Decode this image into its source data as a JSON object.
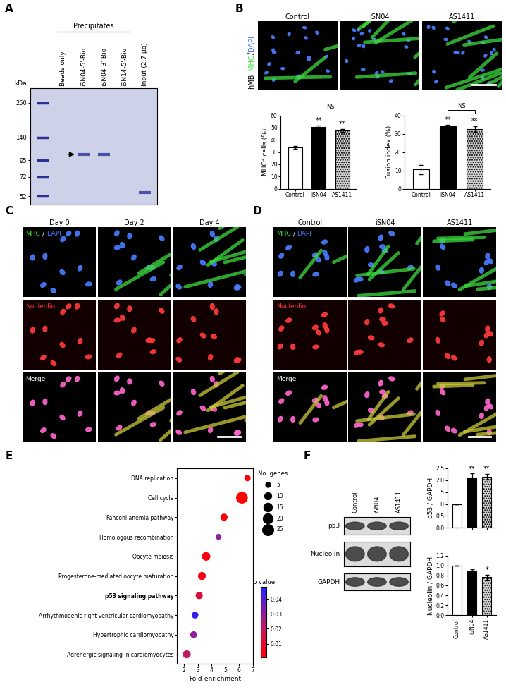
{
  "panel_labels": [
    "A",
    "B",
    "C",
    "D",
    "E",
    "F"
  ],
  "gel": {
    "unit": "kDa",
    "ylim": [
      45,
      320
    ],
    "yticks": [
      250,
      140,
      95,
      72,
      52
    ],
    "lanes": [
      null,
      "Beads only",
      "iSN04-5'-Bio",
      "iSN04-3'-Bio",
      "iSN14-5'-Bio",
      "Input (2.7 µg)"
    ],
    "group": {
      "label": "Precipitates",
      "lanes": [
        "Beads only",
        "iSN04-5'-Bio",
        "iSN04-3'-Bio",
        "iSN14-5'-Bio"
      ]
    },
    "bands": [
      {
        "lane": "iSN04-5'-Bio",
        "kda": 105
      },
      {
        "lane": "iSN04-3'-Bio",
        "kda": 105
      },
      {
        "lane": "Input (2.7 µg)",
        "kda": 55
      }
    ],
    "arrow_lane": "iSN04-5'-Bio"
  },
  "micrographs": {
    "B": {
      "row_label": "hMB",
      "stain": [
        "MHC",
        "/",
        "DAPI"
      ],
      "columns": [
        "Control",
        "iSN04",
        "AS1411"
      ]
    },
    "C": {
      "columns": [
        "Day 0",
        "Day 2",
        "Day 4"
      ],
      "rows": [
        [
          "MHC",
          " / ",
          "DAPI"
        ],
        [
          "Nucleolin"
        ],
        [
          "Merge"
        ]
      ]
    },
    "D": {
      "columns": [
        "Control",
        "iSN04",
        "AS1411"
      ],
      "rows": [
        [
          "MHC",
          " / ",
          "DAPI"
        ],
        [
          "Nucleolin"
        ],
        [
          "Merge"
        ]
      ]
    }
  },
  "blot": {
    "lanes": [
      "Control",
      "iSN04",
      "AS1411"
    ],
    "rows": [
      "p53",
      "Nucleolin",
      "GAPDH"
    ]
  },
  "chart_data": [
    {
      "type": "bar",
      "ylabel": "MHC⁺ cells (%)",
      "categories": [
        "Control",
        "iSN04",
        "AS1411"
      ],
      "values": [
        34,
        50.5,
        47.5
      ],
      "errors": [
        1.2,
        1.0,
        1.0
      ],
      "colors": [
        "#ffffff",
        "#000000",
        "#d0d0d0"
      ],
      "ylim": [
        0,
        60
      ],
      "yticks": [
        0,
        10,
        20,
        30,
        40,
        50,
        60
      ],
      "annotations": [
        {
          "category": "iSN04",
          "text": "**"
        },
        {
          "category": "AS1411",
          "text": "**"
        }
      ],
      "brackets": [
        {
          "from": "iSN04",
          "to": "AS1411",
          "text": "NS"
        }
      ]
    },
    {
      "type": "bar",
      "ylabel": "Fusion index (%)",
      "categories": [
        "Control",
        "iSN04",
        "AS1411"
      ],
      "values": [
        10.5,
        34,
        32.5
      ],
      "errors": [
        2.5,
        0.8,
        1.6
      ],
      "colors": [
        "#ffffff",
        "#000000",
        "#d0d0d0"
      ],
      "ylim": [
        0,
        40
      ],
      "yticks": [
        0,
        10,
        20,
        30,
        40
      ],
      "annotations": [
        {
          "category": "iSN04",
          "text": "**"
        },
        {
          "category": "AS1411",
          "text": "**"
        }
      ],
      "brackets": [
        {
          "from": "iSN04",
          "to": "AS1411",
          "text": "NS"
        }
      ]
    },
    {
      "type": "scatter",
      "xlabel": "Fold-enrichment",
      "categories": [
        "DNA replication",
        "Cell cycle",
        "Fanconi anemia pathway",
        "Homologous recombination",
        "Oocyte meiosis",
        "Progesterone-mediated oocyte maturation",
        "p53 signaling pathway",
        "Arrhythmogenic right ventricular cardiomyopathy",
        "Hypertrophic cardiomyopathy",
        "Adrenergic signaling in cardiomyocytes"
      ],
      "values": [
        6.6,
        6.2,
        4.9,
        4.5,
        3.6,
        3.3,
        3.1,
        2.8,
        2.7,
        2.2
      ],
      "genes": [
        6,
        24,
        8,
        5,
        12,
        10,
        8,
        7,
        7,
        10
      ],
      "p_values": [
        0.003,
        0.001,
        0.004,
        0.03,
        0.004,
        0.005,
        0.012,
        0.045,
        0.03,
        0.02
      ],
      "xlim": [
        1.5,
        7
      ],
      "xticks": [
        2,
        3,
        4,
        5,
        6,
        7
      ],
      "size_legend": {
        "title": "No. genes",
        "values": [
          5,
          10,
          15,
          20,
          25
        ]
      },
      "colorbar": {
        "title": "p value",
        "range": [
          0.001,
          0.048
        ],
        "ticks": [
          0.01,
          0.02,
          0.03,
          0.04
        ]
      }
    },
    {
      "type": "bar",
      "ylabel": "p53 / GAPDH",
      "categories": [
        "Control",
        "iSN04",
        "AS1411"
      ],
      "values": [
        1,
        2.1,
        2.15
      ],
      "errors": [
        0,
        0.18,
        0.12
      ],
      "colors": [
        "#ffffff",
        "#000000",
        "#d0d0d0"
      ],
      "ylim": [
        0,
        2.5
      ],
      "yticks": [
        {
          "value": 0,
          "label": "0.0"
        },
        0.5,
        {
          "value": 1,
          "label": "1.0"
        },
        1.5,
        {
          "value": 2,
          "label": "2.0"
        },
        2.5
      ],
      "tick_labels": "y",
      "annotations": [
        {
          "category": "iSN04",
          "text": "**"
        },
        {
          "category": "AS1411",
          "text": "**"
        }
      ]
    },
    {
      "type": "bar",
      "ylabel": "Nucleolin / GAPDH",
      "categories": [
        "Control",
        "iSN04",
        "AS1411"
      ],
      "values": [
        1,
        0.9,
        0.77
      ],
      "errors": [
        0,
        0.03,
        0.05
      ],
      "colors": [
        "#ffffff",
        "#000000",
        "#d0d0d0"
      ],
      "ylim": [
        0,
        1.2
      ],
      "yticks": [
        {
          "value": 0,
          "label": "0.0"
        },
        0.2,
        0.4,
        0.6,
        0.8,
        {
          "value": 1,
          "label": "1.0"
        },
        1.2
      ],
      "annotations": [
        {
          "category": "AS1411",
          "text": "*"
        }
      ]
    }
  ]
}
